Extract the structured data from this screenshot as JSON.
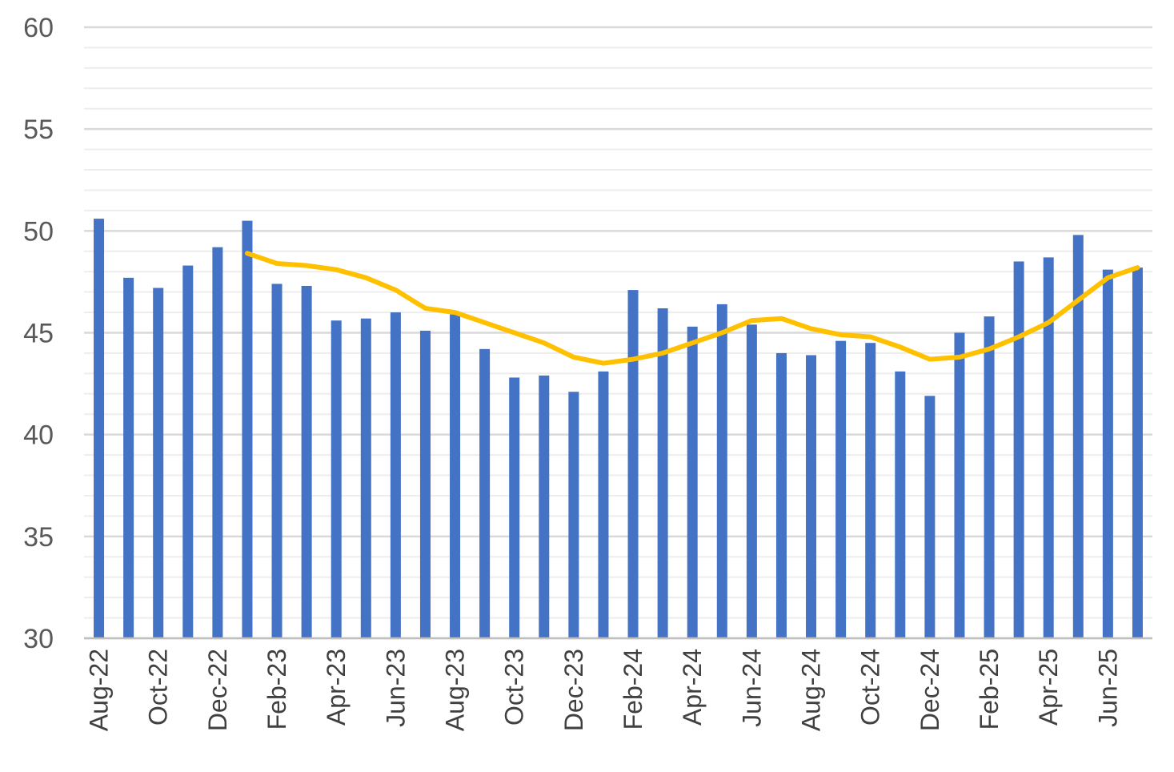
{
  "chart_data": {
    "type": "bar",
    "x": [
      "Aug-22",
      "Sep-22",
      "Oct-22",
      "Nov-22",
      "Dec-22",
      "Jan-23",
      "Feb-23",
      "Mar-23",
      "Apr-23",
      "May-23",
      "Jun-23",
      "Jul-23",
      "Aug-23",
      "Sep-23",
      "Oct-23",
      "Nov-23",
      "Dec-23",
      "Jan-24",
      "Feb-24",
      "Mar-24",
      "Apr-24",
      "May-24",
      "Jun-24",
      "Jul-24",
      "Aug-24",
      "Sep-24",
      "Oct-24",
      "Nov-24",
      "Dec-24",
      "Jan-25",
      "Feb-25",
      "Mar-25",
      "Apr-25",
      "May-25",
      "Jun-25",
      "Jul-25"
    ],
    "tick_labels": [
      "Aug-22",
      "Oct-22",
      "Dec-22",
      "Feb-23",
      "Apr-23",
      "Jun-23",
      "Aug-23",
      "Oct-23",
      "Dec-23",
      "Feb-24",
      "Apr-24",
      "Jun-24",
      "Aug-24",
      "Oct-24",
      "Dec-24",
      "Feb-25",
      "Apr-25",
      "Jun-25"
    ],
    "series": [
      {
        "type": "bar",
        "color": "#4472C4",
        "values": [
          50.6,
          47.7,
          47.2,
          48.3,
          49.2,
          50.5,
          47.4,
          47.3,
          45.6,
          45.7,
          46.0,
          45.1,
          45.9,
          44.2,
          42.8,
          42.9,
          42.1,
          43.1,
          47.1,
          46.2,
          45.3,
          46.4,
          45.4,
          44.0,
          43.9,
          44.6,
          44.5,
          43.1,
          41.9,
          45.0,
          45.8,
          48.5,
          48.7,
          49.8,
          48.1,
          48.2
        ]
      },
      {
        "type": "line",
        "color": "#FFC000",
        "values": [
          null,
          null,
          null,
          null,
          null,
          48.9,
          48.4,
          48.3,
          48.1,
          47.7,
          47.1,
          46.2,
          46.0,
          45.5,
          45.0,
          44.5,
          43.8,
          43.5,
          43.7,
          44.0,
          44.5,
          45.0,
          45.6,
          45.7,
          45.2,
          44.9,
          44.8,
          44.3,
          43.7,
          43.8,
          44.2,
          44.8,
          45.5,
          46.6,
          47.7,
          48.2
        ]
      }
    ],
    "ylim": [
      30,
      60
    ],
    "y_major_ticks": [
      30,
      35,
      40,
      45,
      50,
      55,
      60
    ],
    "y_minor_step": 1,
    "grid": true,
    "legend": "none"
  }
}
